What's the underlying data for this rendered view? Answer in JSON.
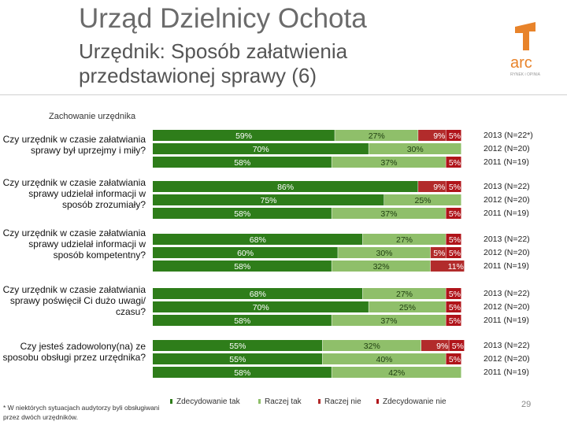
{
  "header": {
    "title": "Urząd Dzielnicy Ochota",
    "subtitle": "Urzędnik: Sposób załatwienia przedstawionej sprawy (6)",
    "logo_text": "arc",
    "logo_tagline": "RYNEK i OPINIA"
  },
  "section_label": "Zachowanie urzędnika",
  "colors": {
    "zdecydowanie_tak": "#2e7d1a",
    "raczej_tak": "#8fbf6a",
    "raczej_nie": "#b22b2b",
    "zdecydowanie_nie": "#b0141a",
    "label_light": "#ffffff"
  },
  "chart_data": {
    "type": "bar",
    "orientation": "horizontal-stacked",
    "series_names": [
      "Zdecydowanie tak",
      "Raczej tak",
      "Raczej nie",
      "Zdecydowanie nie"
    ],
    "xlim": [
      0,
      100
    ],
    "groups": [
      {
        "question": "Czy urzędnik w czasie załatwiania sprawy był uprzejmy i miły?",
        "rows": [
          {
            "year": "2013 (N=22*)",
            "values": [
              59,
              27,
              9,
              5
            ],
            "labels": [
              "59%",
              "27%",
              "9%",
              "5%"
            ]
          },
          {
            "year": "2012 (N=20)",
            "values": [
              70,
              30,
              0,
              0
            ],
            "labels": [
              "70%",
              "30%",
              "",
              ""
            ]
          },
          {
            "year": "2011 (N=19)",
            "values": [
              58,
              37,
              0,
              5
            ],
            "labels": [
              "58%",
              "37%",
              "",
              "5%"
            ]
          }
        ]
      },
      {
        "question": "Czy urzędnik w czasie załatwiania sprawy udzielał informacji w sposób zrozumiały?",
        "rows": [
          {
            "year": "2013 (N=22)",
            "values": [
              86,
              0,
              9,
              5
            ],
            "labels": [
              "86%",
              "",
              "9%",
              "5%"
            ]
          },
          {
            "year": "2012 (N=20)",
            "values": [
              75,
              25,
              0,
              0
            ],
            "labels": [
              "75%",
              "25%",
              "",
              ""
            ]
          },
          {
            "year": "2011 (N=19)",
            "values": [
              58,
              37,
              0,
              5
            ],
            "labels": [
              "58%",
              "37%",
              "",
              "5%"
            ]
          }
        ]
      },
      {
        "question": "Czy urzędnik w czasie załatwiania sprawy udzielał informacji w sposób kompetentny?",
        "rows": [
          {
            "year": "2013 (N=22)",
            "values": [
              68,
              27,
              0,
              5
            ],
            "labels": [
              "68%",
              "27%",
              "",
              "5%"
            ]
          },
          {
            "year": "2012 (N=20)",
            "values": [
              60,
              30,
              5,
              5
            ],
            "labels": [
              "60%",
              "30%",
              "5%",
              "5%"
            ]
          },
          {
            "year": "2011 (N=19)",
            "values": [
              58,
              32,
              11,
              0
            ],
            "labels": [
              "58%",
              "32%",
              "11%",
              ""
            ]
          }
        ]
      },
      {
        "question": "Czy urzędnik w czasie załatwiania sprawy poświęcił Ci dużo uwagi/ czasu?",
        "rows": [
          {
            "year": "2013 (N=22)",
            "values": [
              68,
              27,
              0,
              5
            ],
            "labels": [
              "68%",
              "27%",
              "",
              "5%"
            ]
          },
          {
            "year": "2012 (N=20)",
            "values": [
              70,
              25,
              0,
              5
            ],
            "labels": [
              "70%",
              "25%",
              "",
              "5%"
            ]
          },
          {
            "year": "2011 (N=19)",
            "values": [
              58,
              37,
              0,
              5
            ],
            "labels": [
              "58%",
              "37%",
              "",
              "5%"
            ]
          }
        ]
      },
      {
        "question": "Czy jesteś zadowolony(na) ze sposobu obsługi przez urzędnika?",
        "rows": [
          {
            "year": "2013 (N=22)",
            "values": [
              55,
              32,
              9,
              5
            ],
            "labels": [
              "55%",
              "32%",
              "9%",
              "5%"
            ]
          },
          {
            "year": "2012 (N=20)",
            "values": [
              55,
              40,
              0,
              5
            ],
            "labels": [
              "55%",
              "40%",
              "",
              "5%"
            ]
          },
          {
            "year": "2011 (N=19)",
            "values": [
              58,
              42,
              0,
              0
            ],
            "labels": [
              "58%",
              "42%",
              "",
              ""
            ]
          }
        ]
      }
    ]
  },
  "legend": {
    "items": [
      "Zdecydowanie tak",
      "Raczej tak",
      "Raczej nie",
      "Zdecydowanie nie"
    ]
  },
  "footnote": "* W niektórych sytuacjach audytorzy byli obsługiwani przez dwóch urzędników.",
  "page_number": "29"
}
